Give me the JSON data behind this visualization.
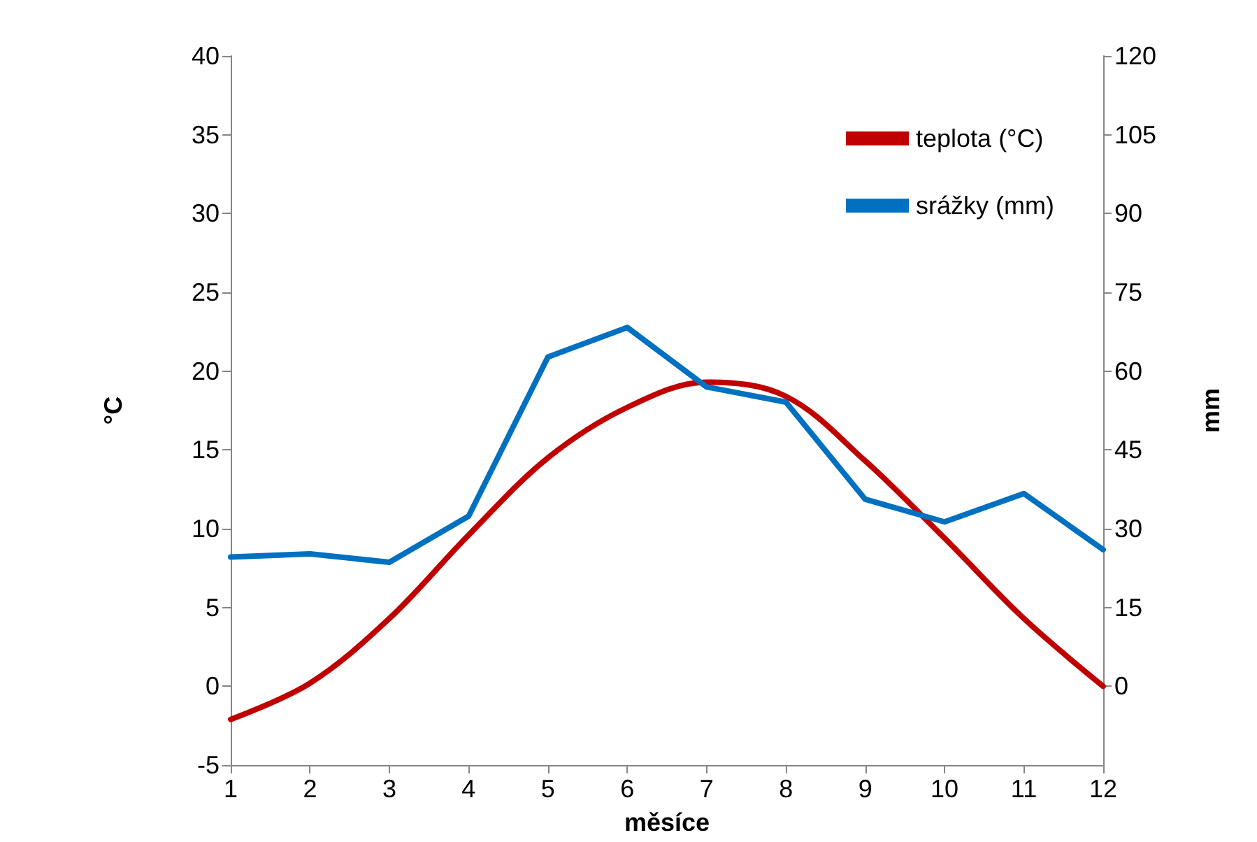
{
  "chart_data": {
    "type": "line",
    "xlabel": "měsíce",
    "ylabel": "°C",
    "y2label": "mm",
    "x": [
      1,
      2,
      3,
      4,
      5,
      6,
      7,
      8,
      9,
      10,
      11,
      12
    ],
    "xlim": [
      1,
      12
    ],
    "xticks": [
      1,
      2,
      3,
      4,
      5,
      6,
      7,
      8,
      9,
      10,
      11,
      12
    ],
    "ylim": [
      -5,
      40
    ],
    "yticks": [
      -5,
      0,
      5,
      10,
      15,
      20,
      25,
      30,
      35,
      40
    ],
    "y2lim": [
      -15,
      120
    ],
    "y2ticks": [
      0,
      15,
      30,
      45,
      60,
      75,
      90,
      105,
      120
    ],
    "series": [
      {
        "name": "teplota (°C)",
        "color": "#c00000",
        "values": [
          -2.1,
          0.2,
          4.3,
          9.6,
          14.5,
          17.7,
          19.3,
          18.4,
          14.3,
          9.4,
          4.3,
          0
        ]
      },
      {
        "name": "srážky (mm)",
        "color": "#0070c0",
        "axis": "y2",
        "values": [
          24.6,
          25.2,
          23.6,
          32.4,
          62.7,
          68.3,
          57,
          54.1,
          35.6,
          31.3,
          36.7,
          26
        ]
      }
    ],
    "legend": "top right",
    "grid": false,
    "marker": "none",
    "line_style": "solid"
  }
}
